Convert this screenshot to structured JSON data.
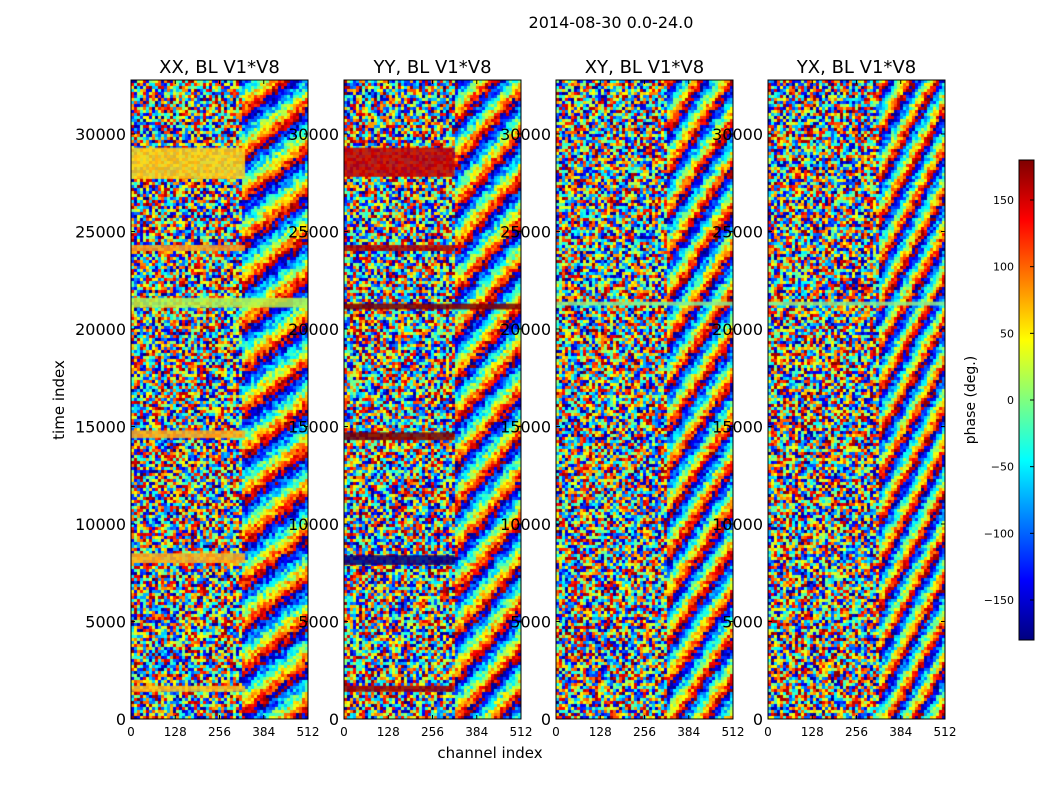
{
  "figure": {
    "suptitle": "2014-08-30 0.0-24.0",
    "xlabel": "channel index",
    "ylabel": "time index"
  },
  "chart_data": {
    "type": "heatmap",
    "title": "2014-08-30 0.0-24.0",
    "xlabel": "channel index",
    "ylabel": "time index",
    "xlim": [
      0,
      512
    ],
    "ylim": [
      0,
      32768
    ],
    "xticks": [
      0,
      128,
      256,
      384,
      512
    ],
    "xtick_labels": [
      "0",
      "128",
      "256",
      "384",
      "512"
    ],
    "yticks": [
      0,
      5000,
      10000,
      15000,
      20000,
      25000,
      30000
    ],
    "ytick_labels": [
      "0",
      "5000",
      "10000",
      "15000",
      "20000",
      "25000",
      "30000"
    ],
    "panels": [
      {
        "title": "XX, BL V1*V8",
        "bands": [
          {
            "t0": 27700,
            "t1": 29300,
            "c1": 330,
            "color": "#ffd21a"
          },
          {
            "t0": 24000,
            "t1": 24300,
            "c1": 330,
            "color": "#ff9b1a"
          },
          {
            "t0": 21100,
            "t1": 21600,
            "c1": 512,
            "color": "#b6f34b"
          },
          {
            "t0": 14400,
            "t1": 14800,
            "c1": 330,
            "color": "#ffae1a"
          },
          {
            "t0": 8000,
            "t1": 8500,
            "c1": 330,
            "color": "#ffb21a"
          },
          {
            "t0": 1400,
            "t1": 1700,
            "c1": 330,
            "color": "#ffc21a"
          }
        ]
      },
      {
        "title": "YY, BL V1*V8",
        "bands": [
          {
            "t0": 27800,
            "t1": 29300,
            "c1": 320,
            "color": "#c40000"
          },
          {
            "t0": 24000,
            "t1": 24300,
            "c1": 320,
            "color": "#a80000"
          },
          {
            "t0": 21000,
            "t1": 21300,
            "c1": 512,
            "color": "#7a0000"
          },
          {
            "t0": 14300,
            "t1": 14700,
            "c1": 320,
            "color": "#7a0000"
          },
          {
            "t0": 7900,
            "t1": 8400,
            "c1": 320,
            "color": "#000080"
          },
          {
            "t0": 1400,
            "t1": 1700,
            "c1": 320,
            "color": "#9a0000"
          }
        ]
      },
      {
        "title": "XY, BL V1*V8",
        "bands": [
          {
            "t0": 21200,
            "t1": 21400,
            "c1": 512,
            "color": "#8cf08c"
          }
        ]
      },
      {
        "title": "YX, BL V1*V8",
        "bands": [
          {
            "t0": 21200,
            "t1": 21400,
            "c1": 512,
            "color": "#8cf08c"
          }
        ]
      }
    ],
    "colorbar": {
      "label": "phase (deg.)",
      "vmin": -180,
      "vmax": 180,
      "ticks": [
        -150,
        -100,
        -50,
        0,
        50,
        100,
        150
      ],
      "tick_labels": [
        "−150",
        "−100",
        "−50",
        "0",
        "50",
        "100",
        "150"
      ],
      "cmap": [
        "#00007f",
        "#0000ff",
        "#00ffff",
        "#7fff7f",
        "#ffff00",
        "#ff0000",
        "#7f0000"
      ]
    }
  }
}
